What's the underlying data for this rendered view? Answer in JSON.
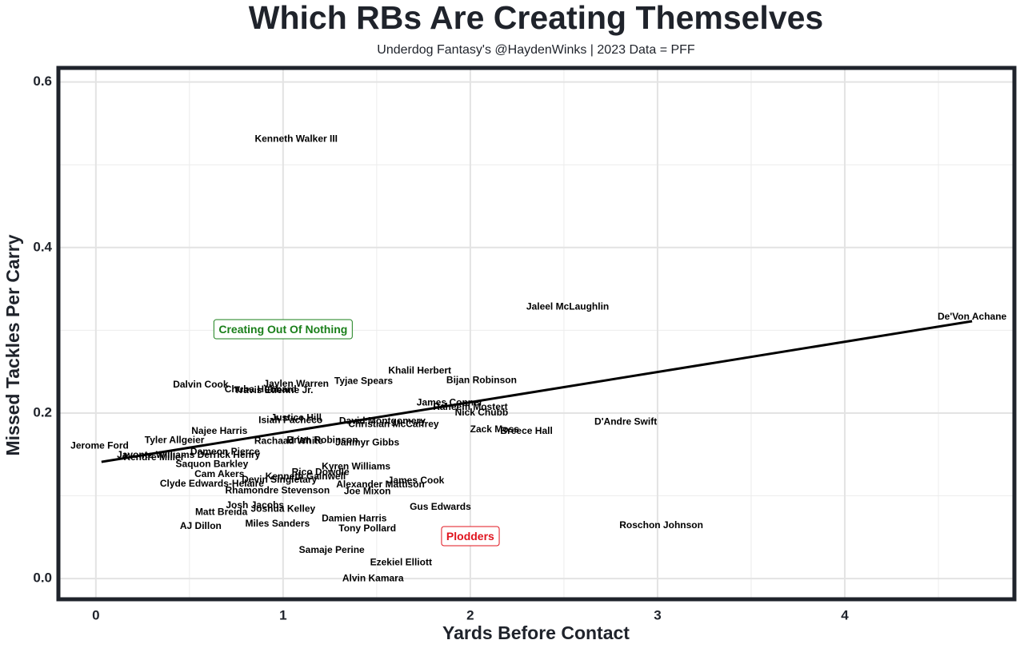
{
  "chart_data": {
    "type": "scatter",
    "title": "Which RBs Are Creating Themselves",
    "subtitle": "Underdog Fantasy's @HaydenWinks | 2023 Data = PFF",
    "x_label": "Yards Before Contact",
    "y_label": "Missed Tackles Per Carry",
    "xlim": [
      -0.2,
      4.906
    ],
    "ylim": [
      -0.025,
      0.617
    ],
    "xticks": [
      0,
      1,
      2,
      3,
      4
    ],
    "yticks": [
      {
        "value": 0,
        "label": "0.0"
      },
      0.2,
      0.4,
      0.6
    ],
    "x_minor_grid": [
      0.5,
      1.5,
      2.5,
      3.5,
      4.5
    ],
    "y_minor_grid": [
      0.1,
      0.3,
      0.5
    ],
    "grid": true,
    "label_color": "#000000",
    "points": {
      "labels": [
        "Kenneth Walker III",
        "Jaleel McLaughlin",
        "De'Von Achane",
        "Khalil Herbert",
        "Bijan Robinson",
        "Tyjae Spears",
        "Jaylen Warren",
        "Dalvin Cook",
        "Chuba Hubbard",
        "Travis Etienne Jr.",
        "James Conner",
        "Raheem Mostert",
        "Nick Chubb",
        "Justice Hill",
        "Isiah Pacheco",
        "David Montgomery",
        "Christian McCaffrey",
        "D'Andre Swift",
        "Zack Moss",
        "Breece Hall",
        "Najee Harris",
        "Rachaad White",
        "Brian Robinson",
        "Jahmyr Gibbs",
        "Tyler Allgeier",
        "Jerome Ford",
        "Dameon Pierce",
        "Derrick Henry",
        "Javonte Williams",
        "Kendre Miller",
        "Saquon Barkley",
        "Kyren Williams",
        "Rico Dowdle",
        "Kenneth Gainwell",
        "Cam Akers",
        "James Cook",
        "Devin Singletary",
        "Alexander Mattison",
        "Clyde Edwards-Helaire",
        "Rhamondre Stevenson",
        "Joe Mixon",
        "Gus Edwards",
        "Josh Jacobs",
        "Joshua Kelley",
        "Matt Breida",
        "Damien Harris",
        "Miles Sanders",
        "AJ Dillon",
        "Tony Pollard",
        "Roschon Johnson",
        "Samaje Perine",
        "Ezekiel Elliott",
        "Alvin Kamara"
      ],
      "x": [
        1.07,
        2.52,
        4.68,
        1.73,
        2.06,
        1.43,
        1.07,
        0.56,
        0.88,
        0.95,
        1.89,
        2.0,
        2.06,
        1.07,
        1.04,
        1.53,
        1.59,
        2.83,
        2.13,
        2.3,
        0.66,
        1.03,
        1.21,
        1.45,
        0.42,
        0.02,
        0.69,
        0.71,
        0.32,
        0.31,
        0.62,
        1.39,
        1.2,
        1.12,
        0.66,
        1.71,
        0.98,
        1.52,
        0.62,
        0.97,
        1.45,
        1.84,
        0.85,
        1.0,
        0.67,
        1.38,
        0.97,
        0.56,
        1.45,
        3.02,
        1.26,
        1.63,
        1.48
      ],
      "y": [
        0.531,
        0.328,
        0.316,
        0.251,
        0.239,
        0.238,
        0.235,
        0.234,
        0.228,
        0.227,
        0.212,
        0.207,
        0.2,
        0.194,
        0.191,
        0.19,
        0.186,
        0.189,
        0.18,
        0.178,
        0.178,
        0.166,
        0.167,
        0.164,
        0.167,
        0.16,
        0.153,
        0.149,
        0.149,
        0.146,
        0.138,
        0.135,
        0.128,
        0.123,
        0.126,
        0.118,
        0.119,
        0.113,
        0.114,
        0.106,
        0.105,
        0.086,
        0.088,
        0.084,
        0.08,
        0.072,
        0.066,
        0.063,
        0.06,
        0.064,
        0.034,
        0.019,
        0.0
      ]
    },
    "trend": {
      "x": [
        0.03,
        4.68
      ],
      "y": [
        0.141,
        0.311
      ],
      "color": "#000000"
    },
    "annotations": [
      {
        "text": "Creating Out Of Nothing",
        "x": 1.0,
        "y": 0.3,
        "color": "#1a7f1a"
      },
      {
        "text": "Plodders",
        "x": 2.0,
        "y": 0.05,
        "color": "#e0141e"
      }
    ]
  }
}
